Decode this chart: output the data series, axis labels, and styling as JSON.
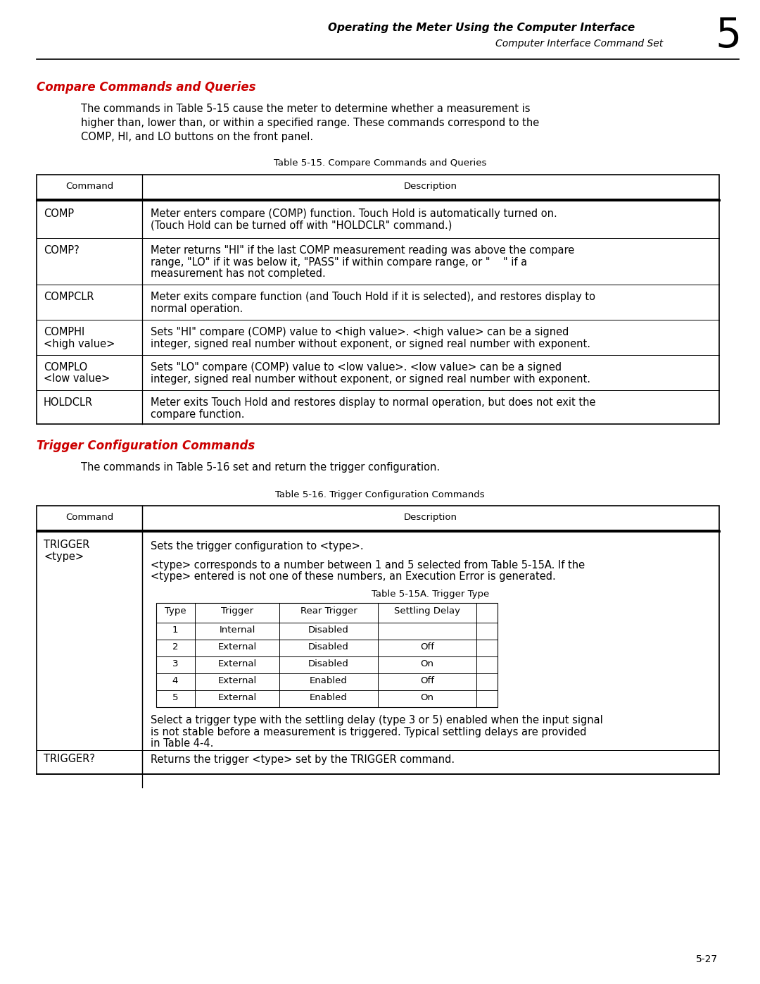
{
  "header_title_bold": "Operating the Meter Using the Computer Interface",
  "header_subtitle_italic": "Computer Interface Command Set",
  "header_number": "5",
  "page_number": "5-27",
  "section1_title": "Compare Commands and Queries",
  "section1_body1": "The commands in Table 5-15 cause the meter to determine whether a measurement is",
  "section1_body2": "higher than, lower than, or within a specified range. These commands correspond to the",
  "section1_body3": "COMP, HI, and LO buttons on the front panel.",
  "table1_title": "Table 5-15. Compare Commands and Queries",
  "table1_col_header1": "Command",
  "table1_col_header2": "Description",
  "table1_rows": [
    {
      "cmd": "COMP",
      "desc_lines": [
        "Meter enters compare (COMP) function. Touch Hold is automatically turned on.",
        "(Touch Hold can be turned off with \"HOLDCLR\" command.)"
      ]
    },
    {
      "cmd": "COMP?",
      "desc_lines": [
        "Meter returns \"HI\" if the last COMP measurement reading was above the compare",
        "range, \"LO\" if it was below it, \"PASS\" if within compare range, or \"    \" if a",
        "measurement has not completed."
      ]
    },
    {
      "cmd": "COMPCLR",
      "desc_lines": [
        "Meter exits compare function (and Touch Hold if it is selected), and restores display to",
        "normal operation."
      ]
    },
    {
      "cmd": "COMPHI\n<high value>",
      "desc_lines": [
        "Sets \"HI\" compare (COMP) value to <high value>. <high value> can be a signed",
        "integer, signed real number without exponent, or signed real number with exponent."
      ]
    },
    {
      "cmd": "COMPLO\n<low value>",
      "desc_lines": [
        "Sets \"LO\" compare (COMP) value to <low value>. <low value> can be a signed",
        "integer, signed real number without exponent, or signed real number with exponent."
      ]
    },
    {
      "cmd": "HOLDCLR",
      "desc_lines": [
        "Meter exits Touch Hold and restores display to normal operation, but does not exit the",
        "compare function."
      ]
    }
  ],
  "section2_title": "Trigger Configuration Commands",
  "section2_body": "The commands in Table 5-16 set and return the trigger configuration.",
  "table2_title": "Table 5-16. Trigger Configuration Commands",
  "table2_col_header1": "Command",
  "table2_col_header2": "Description",
  "trigger_text1": "Sets the trigger configuration to <type>.",
  "trigger_text2a": "<type> corresponds to a number between 1 and 5 selected from Table 5-15A. If the",
  "trigger_text2b": "<type> entered is not one of these numbers, an Execution Error is generated.",
  "trigger_subtable_title": "Table 5-15A. Trigger Type",
  "trigger_subtable_headers": [
    "Type",
    "Trigger",
    "Rear Trigger",
    "Settling Delay"
  ],
  "trigger_subtable_rows": [
    [
      "1",
      "Internal",
      "Disabled",
      ""
    ],
    [
      "2",
      "External",
      "Disabled",
      "Off"
    ],
    [
      "3",
      "External",
      "Disabled",
      "On"
    ],
    [
      "4",
      "External",
      "Enabled",
      "Off"
    ],
    [
      "5",
      "External",
      "Enabled",
      "On"
    ]
  ],
  "trigger_text3a": "Select a trigger type with the settling delay (type 3 or 5) enabled when the input signal",
  "trigger_text3b": "is not stable before a measurement is triggered. Typical settling delays are provided",
  "trigger_text3c": "in Table 4-4.",
  "trigger2_cmd": "TRIGGER?",
  "trigger2_desc": "Returns the trigger <type> set by the TRIGGER command.",
  "bg_color": "#ffffff",
  "red_color": "#cc0000",
  "line_color": "#666666"
}
